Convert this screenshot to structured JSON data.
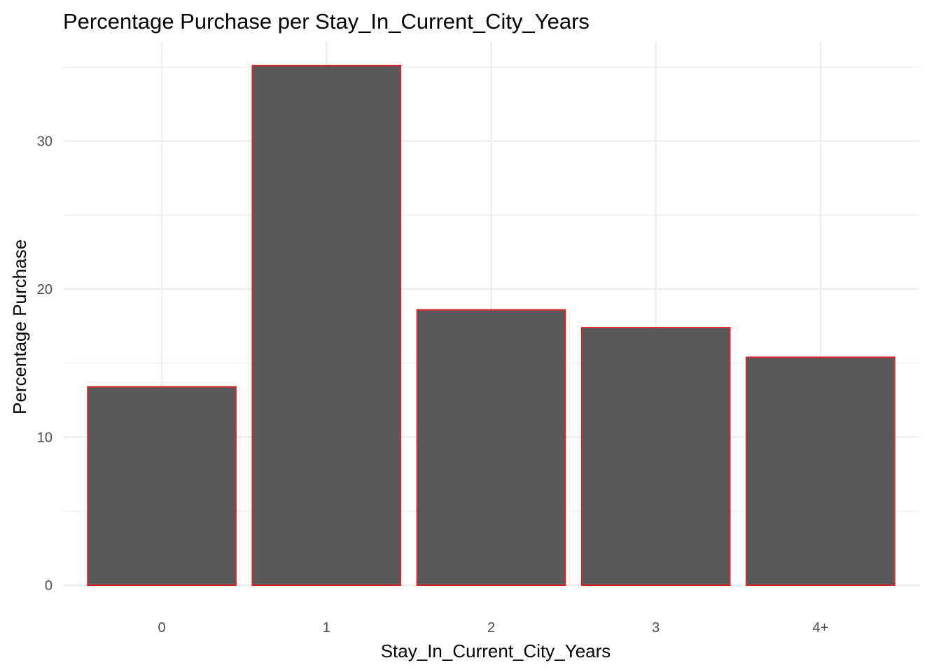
{
  "chart_data": {
    "type": "bar",
    "title": "Percentage Purchase per Stay_In_Current_City_Years",
    "xlabel": "Stay_In_Current_City_Years",
    "ylabel": "Percentage Purchase",
    "categories": [
      "0",
      "1",
      "2",
      "3",
      "4+"
    ],
    "values": [
      13.4,
      35.1,
      18.6,
      17.4,
      15.4
    ],
    "ylim": [
      0,
      36.7
    ],
    "yticks": [
      0,
      10,
      20,
      30
    ],
    "grid": true,
    "legend": "none",
    "colors": {
      "bar_fill": "#595959",
      "bar_outline": "#d62728",
      "grid": "#ebebeb"
    }
  }
}
